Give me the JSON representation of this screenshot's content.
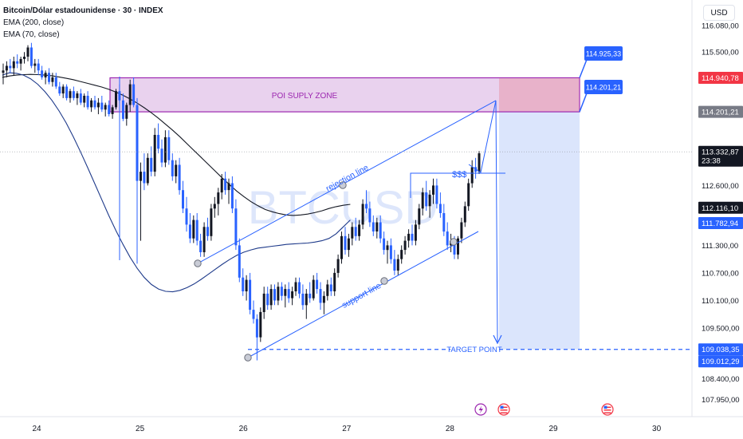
{
  "header": {
    "title": "Bitcoin/Dólar estadounidense · 30 · INDEX",
    "indicators": [
      "EMA (200, close)",
      "EMA (70, close)"
    ],
    "currency_button": "USD"
  },
  "colors": {
    "up_candle": "#131722",
    "down_candle": "#2962ff",
    "ema200": "#131722",
    "ema70": "#1e3a8a",
    "zone_fill": "#e9d2ee",
    "zone_border": "#9c27b0",
    "zone_text": "#9c27b0",
    "annotation_blue": "#2962ff",
    "target_zone": "#d5e0fc",
    "price_red": "#f23645",
    "price_gray": "#787b86",
    "price_black": "#131722"
  },
  "chart_data": {
    "type": "candlestick",
    "watermark": "BTCUSD",
    "xlabels": [
      {
        "label": "24",
        "t": 0
      },
      {
        "label": "25",
        "t": 48
      },
      {
        "label": "26",
        "t": 96
      },
      {
        "label": "27",
        "t": 144
      },
      {
        "label": "28",
        "t": 192
      },
      {
        "label": "29",
        "t": 240
      },
      {
        "label": "30",
        "t": 288
      }
    ],
    "yticks": [
      {
        "label": "116.080,00",
        "v": 116080
      },
      {
        "label": "115.500,00",
        "v": 115500
      },
      {
        "label": "112.600,00",
        "v": 112600
      },
      {
        "label": "111.300,00",
        "v": 111300
      },
      {
        "label": "110.700,00",
        "v": 110700
      },
      {
        "label": "110.100,00",
        "v": 110100
      },
      {
        "label": "109.500,00",
        "v": 109500
      },
      {
        "label": "108.400,00",
        "v": 108400
      },
      {
        "label": "107.950,00",
        "v": 107950
      }
    ],
    "ylim": [
      107750,
      116250
    ],
    "price_labels": [
      {
        "label": "114.940,78",
        "v": 114940.78,
        "style": "red"
      },
      {
        "label": "114.201,21",
        "v": 114201.21,
        "style": "gray"
      },
      {
        "label": "113.332,87",
        "v": 113332.87,
        "style": "black",
        "sub": "23:38"
      },
      {
        "label": "112.116,10",
        "v": 112116.1,
        "style": "black"
      },
      {
        "label": "111.782,94",
        "v": 111782.94,
        "style": "blue"
      },
      {
        "label": "109.038,35",
        "v": 109038.35,
        "style": "blue"
      },
      {
        "label": "109.012,29",
        "v": 109012.29,
        "style": "blue"
      }
    ],
    "supply_zone": {
      "label": "POI SUPLY ZONE",
      "top": 114940.78,
      "bottom": 114201.21,
      "t_start": 35,
      "t_end": 237
    },
    "zone_callouts": [
      {
        "label": "114.925,33",
        "v": 114925.33
      },
      {
        "label": "114.201,21",
        "v": 114201.21
      }
    ],
    "target_point": {
      "label": "TARGET POINT",
      "v": 109038.35
    },
    "annotations": [
      {
        "label": "rejection line"
      },
      {
        "label": "support line"
      },
      {
        "label": "$$$"
      }
    ],
    "candles": [
      {
        "o": 115050,
        "h": 115250,
        "l": 114800,
        "c": 115100
      },
      {
        "o": 115100,
        "h": 115300,
        "l": 114950,
        "c": 115200
      },
      {
        "o": 115200,
        "h": 115350,
        "l": 115050,
        "c": 115150
      },
      {
        "o": 115150,
        "h": 115400,
        "l": 115000,
        "c": 115300
      },
      {
        "o": 115300,
        "h": 115450,
        "l": 115150,
        "c": 115250
      },
      {
        "o": 115250,
        "h": 115400,
        "l": 115100,
        "c": 115350
      },
      {
        "o": 115350,
        "h": 115500,
        "l": 115250,
        "c": 115400
      },
      {
        "o": 115400,
        "h": 115650,
        "l": 115300,
        "c": 115600
      },
      {
        "o": 115600,
        "h": 115700,
        "l": 115150,
        "c": 115200
      },
      {
        "o": 115200,
        "h": 115350,
        "l": 115050,
        "c": 115250
      },
      {
        "o": 115250,
        "h": 115350,
        "l": 115000,
        "c": 115100
      },
      {
        "o": 115100,
        "h": 115200,
        "l": 114900,
        "c": 114950
      },
      {
        "o": 114950,
        "h": 115100,
        "l": 114800,
        "c": 115050
      },
      {
        "o": 115050,
        "h": 115150,
        "l": 114800,
        "c": 114850
      },
      {
        "o": 114850,
        "h": 115050,
        "l": 114750,
        "c": 114950
      },
      {
        "o": 114950,
        "h": 115050,
        "l": 114700,
        "c": 114750
      },
      {
        "o": 114750,
        "h": 114850,
        "l": 114550,
        "c": 114600
      },
      {
        "o": 114600,
        "h": 114800,
        "l": 114500,
        "c": 114750
      },
      {
        "o": 114750,
        "h": 114800,
        "l": 114450,
        "c": 114500
      },
      {
        "o": 114500,
        "h": 114700,
        "l": 114400,
        "c": 114650
      },
      {
        "o": 114650,
        "h": 114750,
        "l": 114450,
        "c": 114500
      },
      {
        "o": 114500,
        "h": 114650,
        "l": 114350,
        "c": 114600
      },
      {
        "o": 114600,
        "h": 114700,
        "l": 114350,
        "c": 114400
      },
      {
        "o": 114400,
        "h": 114600,
        "l": 114300,
        "c": 114550
      },
      {
        "o": 114550,
        "h": 114650,
        "l": 114250,
        "c": 114300
      },
      {
        "o": 114300,
        "h": 114500,
        "l": 114200,
        "c": 114450
      },
      {
        "o": 114450,
        "h": 114550,
        "l": 114250,
        "c": 114300
      },
      {
        "o": 114300,
        "h": 114500,
        "l": 114150,
        "c": 114400
      },
      {
        "o": 114400,
        "h": 114550,
        "l": 114200,
        "c": 114250
      },
      {
        "o": 114250,
        "h": 114400,
        "l": 114100,
        "c": 114350
      },
      {
        "o": 114350,
        "h": 114450,
        "l": 114100,
        "c": 114150
      },
      {
        "o": 114150,
        "h": 114350,
        "l": 114050,
        "c": 114300
      },
      {
        "o": 114300,
        "h": 114700,
        "l": 114250,
        "c": 114650
      },
      {
        "o": 114650,
        "h": 114800,
        "l": 114400,
        "c": 114450
      },
      {
        "o": 114450,
        "h": 114600,
        "l": 114000,
        "c": 114050
      },
      {
        "o": 114050,
        "h": 114400,
        "l": 113900,
        "c": 114350
      },
      {
        "o": 114350,
        "h": 114900,
        "l": 114200,
        "c": 114800
      },
      {
        "o": 114800,
        "h": 114950,
        "l": 114300,
        "c": 114350
      },
      {
        "o": 114350,
        "h": 114500,
        "l": 110900,
        "c": 112700
      },
      {
        "o": 112700,
        "h": 113100,
        "l": 111400,
        "c": 112900
      },
      {
        "o": 112900,
        "h": 113300,
        "l": 112500,
        "c": 112650
      },
      {
        "o": 112650,
        "h": 113300,
        "l": 112600,
        "c": 113200
      },
      {
        "o": 113200,
        "h": 113450,
        "l": 112800,
        "c": 112900
      },
      {
        "o": 112900,
        "h": 113850,
        "l": 112800,
        "c": 113700
      },
      {
        "o": 113700,
        "h": 113950,
        "l": 113300,
        "c": 113400
      },
      {
        "o": 113400,
        "h": 113600,
        "l": 113000,
        "c": 113100
      },
      {
        "o": 113100,
        "h": 113800,
        "l": 113000,
        "c": 113650
      },
      {
        "o": 113650,
        "h": 113800,
        "l": 113050,
        "c": 113150
      },
      {
        "o": 113150,
        "h": 113300,
        "l": 112700,
        "c": 112800
      },
      {
        "o": 112800,
        "h": 113150,
        "l": 112650,
        "c": 113050
      },
      {
        "o": 113050,
        "h": 113200,
        "l": 112400,
        "c": 112500
      },
      {
        "o": 112500,
        "h": 112700,
        "l": 112000,
        "c": 112100
      },
      {
        "o": 112100,
        "h": 112350,
        "l": 111600,
        "c": 111750
      },
      {
        "o": 111750,
        "h": 112000,
        "l": 111350,
        "c": 111450
      },
      {
        "o": 111450,
        "h": 111950,
        "l": 111350,
        "c": 111850
      },
      {
        "o": 111850,
        "h": 112000,
        "l": 111300,
        "c": 111400
      },
      {
        "o": 111400,
        "h": 111550,
        "l": 111050,
        "c": 111150
      },
      {
        "o": 111150,
        "h": 111800,
        "l": 111050,
        "c": 111700
      },
      {
        "o": 111700,
        "h": 111900,
        "l": 111400,
        "c": 111500
      },
      {
        "o": 111500,
        "h": 112200,
        "l": 111400,
        "c": 112100
      },
      {
        "o": 112100,
        "h": 112350,
        "l": 111900,
        "c": 112200
      },
      {
        "o": 112200,
        "h": 112550,
        "l": 111950,
        "c": 112450
      },
      {
        "o": 112450,
        "h": 112850,
        "l": 112300,
        "c": 112750
      },
      {
        "o": 112750,
        "h": 112900,
        "l": 112400,
        "c": 112500
      },
      {
        "o": 112500,
        "h": 112750,
        "l": 112200,
        "c": 112650
      },
      {
        "o": 112650,
        "h": 112800,
        "l": 112000,
        "c": 112100
      },
      {
        "o": 112100,
        "h": 112300,
        "l": 111200,
        "c": 111300
      },
      {
        "o": 111300,
        "h": 111450,
        "l": 110500,
        "c": 110600
      },
      {
        "o": 110600,
        "h": 110800,
        "l": 110200,
        "c": 110300
      },
      {
        "o": 110300,
        "h": 110650,
        "l": 110100,
        "c": 110550
      },
      {
        "o": 110550,
        "h": 110700,
        "l": 109800,
        "c": 109900
      },
      {
        "o": 109900,
        "h": 110100,
        "l": 109600,
        "c": 109700
      },
      {
        "o": 109700,
        "h": 109800,
        "l": 108800,
        "c": 109300
      },
      {
        "o": 109300,
        "h": 109950,
        "l": 109200,
        "c": 109850
      },
      {
        "o": 109850,
        "h": 110400,
        "l": 109700,
        "c": 110250
      },
      {
        "o": 110250,
        "h": 110400,
        "l": 109900,
        "c": 110000
      },
      {
        "o": 110000,
        "h": 110450,
        "l": 109900,
        "c": 110350
      },
      {
        "o": 110350,
        "h": 110450,
        "l": 110000,
        "c": 110100
      },
      {
        "o": 110100,
        "h": 110500,
        "l": 110000,
        "c": 110400
      },
      {
        "o": 110400,
        "h": 110500,
        "l": 110100,
        "c": 110200
      },
      {
        "o": 110200,
        "h": 110450,
        "l": 109950,
        "c": 110350
      },
      {
        "o": 110350,
        "h": 110500,
        "l": 110050,
        "c": 110150
      },
      {
        "o": 110150,
        "h": 110400,
        "l": 110000,
        "c": 110300
      },
      {
        "o": 110300,
        "h": 110600,
        "l": 110200,
        "c": 110500
      },
      {
        "o": 110500,
        "h": 110600,
        "l": 110150,
        "c": 110250
      },
      {
        "o": 110250,
        "h": 110450,
        "l": 109900,
        "c": 110000
      },
      {
        "o": 110000,
        "h": 110350,
        "l": 109700,
        "c": 110250
      },
      {
        "o": 110250,
        "h": 110500,
        "l": 110050,
        "c": 110150
      },
      {
        "o": 110150,
        "h": 110650,
        "l": 110100,
        "c": 110550
      },
      {
        "o": 110550,
        "h": 110700,
        "l": 110250,
        "c": 110350
      },
      {
        "o": 110350,
        "h": 110500,
        "l": 109900,
        "c": 110050
      },
      {
        "o": 110050,
        "h": 110300,
        "l": 109800,
        "c": 110200
      },
      {
        "o": 110200,
        "h": 110550,
        "l": 110100,
        "c": 110450
      },
      {
        "o": 110450,
        "h": 110600,
        "l": 110200,
        "c": 110300
      },
      {
        "o": 110300,
        "h": 110800,
        "l": 110200,
        "c": 110700
      },
      {
        "o": 110700,
        "h": 111100,
        "l": 110600,
        "c": 111000
      },
      {
        "o": 111000,
        "h": 111600,
        "l": 110900,
        "c": 111500
      },
      {
        "o": 111500,
        "h": 111700,
        "l": 111100,
        "c": 111200
      },
      {
        "o": 111200,
        "h": 111550,
        "l": 111050,
        "c": 111450
      },
      {
        "o": 111450,
        "h": 111800,
        "l": 111300,
        "c": 111700
      },
      {
        "o": 111700,
        "h": 111900,
        "l": 111400,
        "c": 111500
      },
      {
        "o": 111500,
        "h": 111850,
        "l": 111400,
        "c": 111750
      },
      {
        "o": 111750,
        "h": 112300,
        "l": 111650,
        "c": 112200
      },
      {
        "o": 112200,
        "h": 112500,
        "l": 112000,
        "c": 112100
      },
      {
        "o": 112100,
        "h": 112250,
        "l": 111700,
        "c": 111800
      },
      {
        "o": 111800,
        "h": 111950,
        "l": 111500,
        "c": 111600
      },
      {
        "o": 111600,
        "h": 111900,
        "l": 111450,
        "c": 111800
      },
      {
        "o": 111800,
        "h": 111950,
        "l": 111350,
        "c": 111450
      },
      {
        "o": 111450,
        "h": 111600,
        "l": 111100,
        "c": 111200
      },
      {
        "o": 111200,
        "h": 111400,
        "l": 110900,
        "c": 111300
      },
      {
        "o": 111300,
        "h": 111450,
        "l": 110900,
        "c": 111000
      },
      {
        "o": 111000,
        "h": 111200,
        "l": 110650,
        "c": 110750
      },
      {
        "o": 110750,
        "h": 111100,
        "l": 110650,
        "c": 111000
      },
      {
        "o": 111000,
        "h": 111300,
        "l": 110900,
        "c": 111200
      },
      {
        "o": 111200,
        "h": 111500,
        "l": 111100,
        "c": 111400
      },
      {
        "o": 111400,
        "h": 111650,
        "l": 111250,
        "c": 111550
      },
      {
        "o": 111550,
        "h": 111750,
        "l": 111300,
        "c": 111400
      },
      {
        "o": 111400,
        "h": 111850,
        "l": 111300,
        "c": 111750
      },
      {
        "o": 111750,
        "h": 112200,
        "l": 111650,
        "c": 112100
      },
      {
        "o": 112100,
        "h": 112550,
        "l": 111950,
        "c": 112450
      },
      {
        "o": 112450,
        "h": 112700,
        "l": 112050,
        "c": 112150
      },
      {
        "o": 112150,
        "h": 112500,
        "l": 111900,
        "c": 112400
      },
      {
        "o": 112400,
        "h": 112750,
        "l": 112200,
        "c": 112600
      },
      {
        "o": 112600,
        "h": 112750,
        "l": 112100,
        "c": 112200
      },
      {
        "o": 112200,
        "h": 112450,
        "l": 111900,
        "c": 112000
      },
      {
        "o": 112000,
        "h": 112200,
        "l": 111500,
        "c": 111600
      },
      {
        "o": 111600,
        "h": 111800,
        "l": 111200,
        "c": 111300
      },
      {
        "o": 111300,
        "h": 111550,
        "l": 111150,
        "c": 111400
      },
      {
        "o": 111400,
        "h": 111500,
        "l": 111000,
        "c": 111100
      },
      {
        "o": 111100,
        "h": 111500,
        "l": 111000,
        "c": 111450
      },
      {
        "o": 111450,
        "h": 111900,
        "l": 111350,
        "c": 111800
      },
      {
        "o": 111800,
        "h": 112250,
        "l": 111700,
        "c": 112150
      },
      {
        "o": 112150,
        "h": 112750,
        "l": 112050,
        "c": 112650
      },
      {
        "o": 112650,
        "h": 113150,
        "l": 112550,
        "c": 113000
      },
      {
        "o": 113000,
        "h": 113200,
        "l": 112750,
        "c": 112900
      },
      {
        "o": 112900,
        "h": 113350,
        "l": 112850,
        "c": 113300
      }
    ],
    "ema200": [
      114950,
      114980,
      115000,
      115010,
      115015,
      115010,
      115000,
      114985,
      114960,
      114930,
      114900,
      114860,
      114820,
      114780,
      114740,
      114690,
      114630,
      114560,
      114480,
      114390,
      114290,
      114180,
      114060,
      113930,
      113800,
      113660,
      113510,
      113360,
      113210,
      113060,
      112910,
      112760,
      112620,
      112480,
      112360,
      112250,
      112160,
      112080,
      112030,
      111990,
      111960,
      111950,
      111960,
      111980,
      112010,
      112050,
      112100,
      112140,
      112170,
      112190
    ],
    "ema70": [
      115000,
      115050,
      115040,
      115000,
      114920,
      114800,
      114640,
      114450,
      114220,
      113960,
      113660,
      113340,
      113000,
      112650,
      112300,
      111950,
      111620,
      111320,
      111040,
      110800,
      110600,
      110450,
      110350,
      110300,
      110290,
      110320,
      110380,
      110460,
      110560,
      110670,
      110780,
      110890,
      110990,
      111080,
      111150,
      111200,
      111240,
      111260,
      111280,
      111300,
      111320,
      111330,
      111340,
      111350,
      111370,
      111400,
      111450,
      111550,
      111700,
      111850
    ]
  }
}
